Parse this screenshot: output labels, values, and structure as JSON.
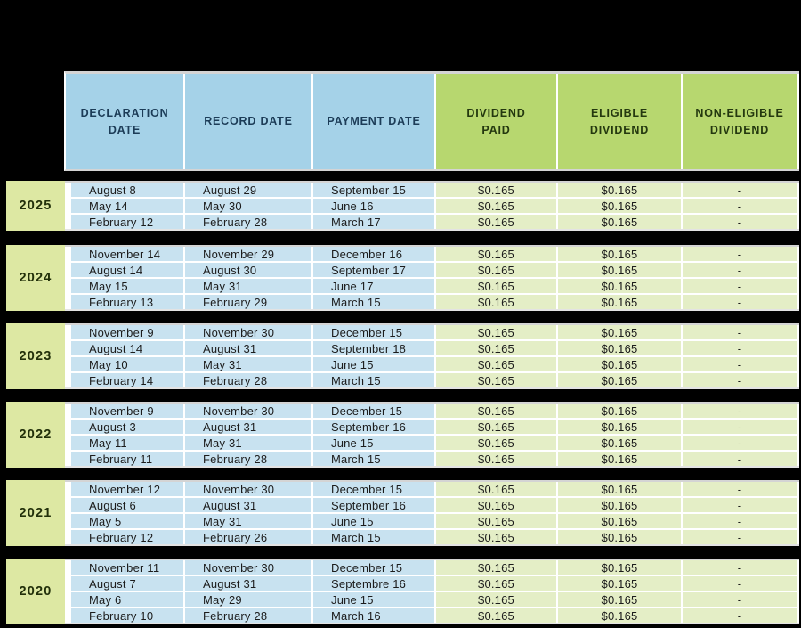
{
  "colors": {
    "page_bg": "#000000",
    "header_blue": "#a5d2e8",
    "header_green": "#b7d76f",
    "cell_blue": "#c8e2f0",
    "cell_green": "#e4eec6",
    "year_green": "#dde8a3",
    "separator": "#ffffff",
    "border_gray": "#d4d4d4",
    "header_blue_text": "#1c3c57",
    "header_green_text": "#24380f",
    "body_text": "#1c1c1c",
    "year_text": "#22300a"
  },
  "table": {
    "columns": [
      {
        "id": "declaration-date",
        "label": "DECLARATION\nDATE",
        "style": "blue"
      },
      {
        "id": "record-date",
        "label": "RECORD DATE",
        "style": "blue"
      },
      {
        "id": "payment-date",
        "label": "PAYMENT DATE",
        "style": "blue"
      },
      {
        "id": "dividend-paid",
        "label": "DIVIDEND\nPAID",
        "style": "green"
      },
      {
        "id": "eligible-dividend",
        "label": "ELIGIBLE\nDIVIDEND",
        "style": "green"
      },
      {
        "id": "non-eligible-dividend",
        "label": "NON-ELIGIBLE\nDIVIDEND",
        "style": "green"
      }
    ],
    "groups": [
      {
        "year": "2025",
        "rows": [
          [
            "August 8",
            "August 29",
            "September 15",
            "$0.165",
            "$0.165",
            "-"
          ],
          [
            "May 14",
            "May 30",
            "June 16",
            "$0.165",
            "$0.165",
            "-"
          ],
          [
            "February 12",
            "February 28",
            "March 17",
            "$0.165",
            "$0.165",
            "-"
          ]
        ]
      },
      {
        "year": "2024",
        "rows": [
          [
            "November 14",
            "November 29",
            "December 16",
            "$0.165",
            "$0.165",
            "-"
          ],
          [
            "August 14",
            "August 30",
            "September 17",
            "$0.165",
            "$0.165",
            "-"
          ],
          [
            "May 15",
            "May 31",
            "June 17",
            "$0.165",
            "$0.165",
            "-"
          ],
          [
            "February 13",
            "February 29",
            "March 15",
            "$0.165",
            "$0.165",
            "-"
          ]
        ]
      },
      {
        "year": "2023",
        "rows": [
          [
            "November 9",
            "November 30",
            "December 15",
            "$0.165",
            "$0.165",
            "-"
          ],
          [
            "August 14",
            "August 31",
            "September 18",
            "$0.165",
            "$0.165",
            "-"
          ],
          [
            "May 10",
            "May 31",
            "June 15",
            "$0.165",
            "$0.165",
            "-"
          ],
          [
            "February 14",
            "February 28",
            "March 15",
            "$0.165",
            "$0.165",
            "-"
          ]
        ]
      },
      {
        "year": "2022",
        "rows": [
          [
            "November 9",
            "November 30",
            "December 15",
            "$0.165",
            "$0.165",
            "-"
          ],
          [
            "August 3",
            "August 31",
            "September 16",
            "$0.165",
            "$0.165",
            "-"
          ],
          [
            "May 11",
            "May 31",
            "June 15",
            "$0.165",
            "$0.165",
            "-"
          ],
          [
            "February 11",
            "February 28",
            "March 15",
            "$0.165",
            "$0.165",
            "-"
          ]
        ]
      },
      {
        "year": "2021",
        "rows": [
          [
            "November 12",
            "November 30",
            "December 15",
            "$0.165",
            "$0.165",
            "-"
          ],
          [
            "August 6",
            "August 31",
            "September 16",
            "$0.165",
            "$0.165",
            "-"
          ],
          [
            "May 5",
            "May 31",
            "June 15",
            "$0.165",
            "$0.165",
            "-"
          ],
          [
            "February 12",
            "February 26",
            "March 15",
            "$0.165",
            "$0.165",
            "-"
          ]
        ]
      },
      {
        "year": "2020",
        "rows": [
          [
            "November 11",
            "November 30",
            "December 15",
            "$0.165",
            "$0.165",
            "-"
          ],
          [
            "August 7",
            "August 31",
            "Septembre 16",
            "$0.165",
            "$0.165",
            "-"
          ],
          [
            "May 6",
            "May 29",
            "June 15",
            "$0.165",
            "$0.165",
            "-"
          ],
          [
            "February 10",
            "February 28",
            "March 16",
            "$0.165",
            "$0.165",
            "-"
          ]
        ]
      }
    ]
  }
}
